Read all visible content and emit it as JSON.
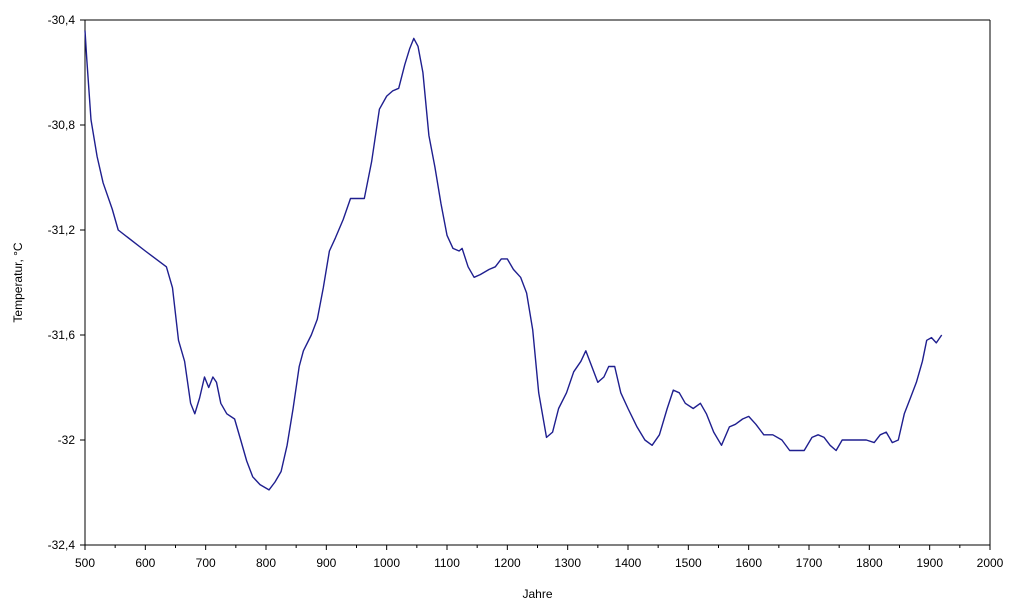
{
  "chart_data": {
    "type": "line",
    "title": "",
    "xlabel": "Jahre",
    "ylabel": "Temperatur, °C",
    "xlim": [
      500,
      2000
    ],
    "ylim": [
      -32.4,
      -30.4
    ],
    "grid": false,
    "legend": "none",
    "x_ticks": [
      500,
      600,
      700,
      800,
      900,
      1000,
      1100,
      1200,
      1300,
      1400,
      1500,
      1600,
      1700,
      1800,
      1900,
      2000
    ],
    "x_tick_labels": [
      "500",
      "600",
      "700",
      "800",
      "900",
      "1000",
      "1100",
      "1200",
      "1300",
      "1400",
      "1500",
      "1600",
      "1700",
      "1800",
      "1900",
      "2000"
    ],
    "y_ticks": [
      -30.4,
      -30.8,
      -31.2,
      -31.6,
      -32,
      -32.4
    ],
    "y_tick_labels": [
      "-30,4",
      "-30,8",
      "-31,2",
      "-31,6",
      "-32",
      "-32,4"
    ],
    "series": [
      {
        "color": "#1f1f8f",
        "points": [
          [
            500,
            -30.44
          ],
          [
            503,
            -30.55
          ],
          [
            510,
            -30.78
          ],
          [
            520,
            -30.92
          ],
          [
            530,
            -31.02
          ],
          [
            545,
            -31.12
          ],
          [
            555,
            -31.2
          ],
          [
            600,
            -31.28
          ],
          [
            635,
            -31.34
          ],
          [
            645,
            -31.42
          ],
          [
            655,
            -31.62
          ],
          [
            665,
            -31.7
          ],
          [
            675,
            -31.86
          ],
          [
            682,
            -31.9
          ],
          [
            690,
            -31.84
          ],
          [
            698,
            -31.76
          ],
          [
            705,
            -31.8
          ],
          [
            712,
            -31.76
          ],
          [
            718,
            -31.78
          ],
          [
            725,
            -31.86
          ],
          [
            735,
            -31.9
          ],
          [
            748,
            -31.92
          ],
          [
            758,
            -32.0
          ],
          [
            768,
            -32.08
          ],
          [
            778,
            -32.14
          ],
          [
            790,
            -32.17
          ],
          [
            805,
            -32.19
          ],
          [
            815,
            -32.16
          ],
          [
            825,
            -32.12
          ],
          [
            835,
            -32.02
          ],
          [
            845,
            -31.88
          ],
          [
            855,
            -31.72
          ],
          [
            862,
            -31.66
          ],
          [
            875,
            -31.6
          ],
          [
            885,
            -31.54
          ],
          [
            895,
            -31.42
          ],
          [
            905,
            -31.28
          ],
          [
            915,
            -31.23
          ],
          [
            928,
            -31.16
          ],
          [
            940,
            -31.08
          ],
          [
            952,
            -31.08
          ],
          [
            963,
            -31.08
          ],
          [
            975,
            -30.94
          ],
          [
            988,
            -30.74
          ],
          [
            1000,
            -30.69
          ],
          [
            1010,
            -30.67
          ],
          [
            1020,
            -30.66
          ],
          [
            1030,
            -30.57
          ],
          [
            1038,
            -30.51
          ],
          [
            1045,
            -30.47
          ],
          [
            1052,
            -30.5
          ],
          [
            1060,
            -30.6
          ],
          [
            1070,
            -30.84
          ],
          [
            1080,
            -30.96
          ],
          [
            1090,
            -31.1
          ],
          [
            1100,
            -31.22
          ],
          [
            1110,
            -31.27
          ],
          [
            1120,
            -31.28
          ],
          [
            1125,
            -31.27
          ],
          [
            1135,
            -31.34
          ],
          [
            1145,
            -31.38
          ],
          [
            1155,
            -31.37
          ],
          [
            1170,
            -31.35
          ],
          [
            1180,
            -31.34
          ],
          [
            1190,
            -31.31
          ],
          [
            1200,
            -31.31
          ],
          [
            1210,
            -31.35
          ],
          [
            1222,
            -31.38
          ],
          [
            1232,
            -31.44
          ],
          [
            1242,
            -31.58
          ],
          [
            1252,
            -31.82
          ],
          [
            1265,
            -31.99
          ],
          [
            1275,
            -31.97
          ],
          [
            1285,
            -31.88
          ],
          [
            1298,
            -31.82
          ],
          [
            1310,
            -31.74
          ],
          [
            1322,
            -31.7
          ],
          [
            1330,
            -31.66
          ],
          [
            1340,
            -31.72
          ],
          [
            1350,
            -31.78
          ],
          [
            1360,
            -31.76
          ],
          [
            1368,
            -31.72
          ],
          [
            1378,
            -31.72
          ],
          [
            1388,
            -31.82
          ],
          [
            1400,
            -31.88
          ],
          [
            1415,
            -31.95
          ],
          [
            1428,
            -32.0
          ],
          [
            1440,
            -32.02
          ],
          [
            1452,
            -31.98
          ],
          [
            1465,
            -31.88
          ],
          [
            1475,
            -31.81
          ],
          [
            1485,
            -31.82
          ],
          [
            1495,
            -31.86
          ],
          [
            1508,
            -31.88
          ],
          [
            1520,
            -31.86
          ],
          [
            1530,
            -31.9
          ],
          [
            1542,
            -31.97
          ],
          [
            1555,
            -32.02
          ],
          [
            1568,
            -31.95
          ],
          [
            1578,
            -31.94
          ],
          [
            1590,
            -31.92
          ],
          [
            1600,
            -31.91
          ],
          [
            1612,
            -31.94
          ],
          [
            1625,
            -31.98
          ],
          [
            1640,
            -31.98
          ],
          [
            1655,
            -32.0
          ],
          [
            1668,
            -32.04
          ],
          [
            1680,
            -32.04
          ],
          [
            1692,
            -32.04
          ],
          [
            1705,
            -31.99
          ],
          [
            1715,
            -31.98
          ],
          [
            1725,
            -31.99
          ],
          [
            1735,
            -32.02
          ],
          [
            1745,
            -32.04
          ],
          [
            1755,
            -32.0
          ],
          [
            1765,
            -32.0
          ],
          [
            1780,
            -32.0
          ],
          [
            1795,
            -32.0
          ],
          [
            1808,
            -32.01
          ],
          [
            1818,
            -31.98
          ],
          [
            1828,
            -31.97
          ],
          [
            1838,
            -32.01
          ],
          [
            1848,
            -32.0
          ],
          [
            1858,
            -31.9
          ],
          [
            1868,
            -31.84
          ],
          [
            1878,
            -31.78
          ],
          [
            1888,
            -31.7
          ],
          [
            1895,
            -31.62
          ],
          [
            1903,
            -31.61
          ],
          [
            1911,
            -31.63
          ],
          [
            1920,
            -31.6
          ]
        ]
      }
    ]
  }
}
